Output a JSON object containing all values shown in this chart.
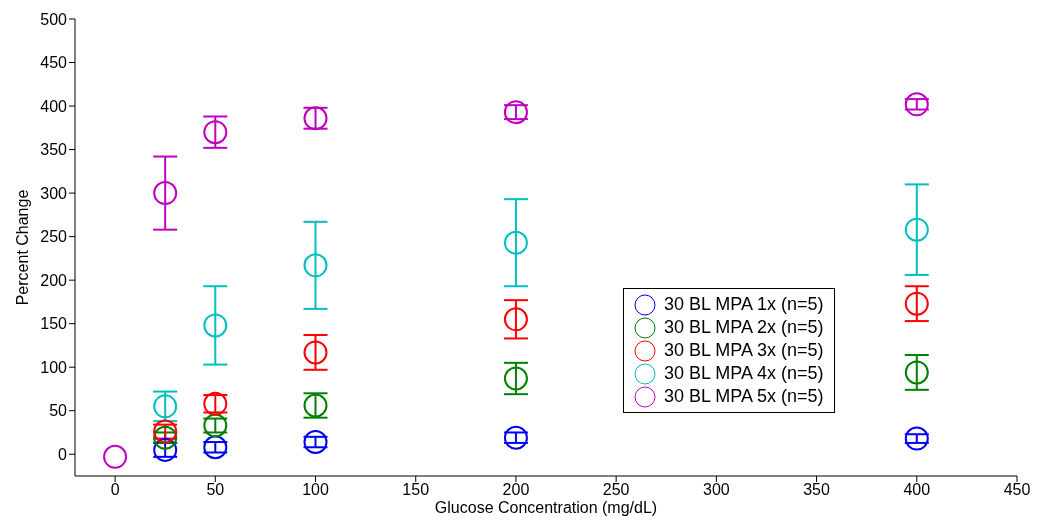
{
  "chart_data": {
    "type": "scatter",
    "xlabel": "Glucose Concentration (mg/dL)",
    "ylabel": "Percent Change",
    "x": [
      0,
      25,
      50,
      100,
      200,
      400
    ],
    "xlim": [
      -20,
      450
    ],
    "xticks": [
      0,
      50,
      100,
      150,
      200,
      250,
      300,
      350,
      400,
      450
    ],
    "ylim": [
      -25,
      500
    ],
    "yticks": [
      0,
      50,
      100,
      150,
      200,
      250,
      300,
      350,
      400,
      450,
      500
    ],
    "grid": false,
    "legend": "right",
    "marker": "circle",
    "series": [
      {
        "name": "30 BL MPA 1x (n=5)",
        "color": "#0000ff",
        "values": [
          null,
          5,
          8,
          14,
          19,
          18
        ],
        "errors": [
          null,
          8,
          6,
          6,
          6,
          5
        ]
      },
      {
        "name": "30 BL MPA 2x (n=5)",
        "color": "#008000",
        "values": [
          null,
          19,
          33,
          56,
          87,
          94
        ],
        "errors": [
          null,
          6,
          8,
          14,
          18,
          20
        ]
      },
      {
        "name": "30 BL MPA 3x (n=5)",
        "color": "#ff0000",
        "values": [
          null,
          26,
          58,
          117,
          155,
          173
        ],
        "errors": [
          null,
          8,
          10,
          20,
          22,
          20
        ]
      },
      {
        "name": "30 BL MPA 4x (n=5)",
        "color": "#00bfbf",
        "values": [
          null,
          55,
          148,
          217,
          243,
          258
        ],
        "errors": [
          null,
          17,
          45,
          50,
          50,
          52
        ]
      },
      {
        "name": "30 BL MPA 5x (n=5)",
        "color": "#bf00bf",
        "values": [
          -3,
          300,
          370,
          386,
          393,
          402
        ],
        "errors": [
          null,
          42,
          18,
          12,
          8,
          6
        ]
      }
    ]
  }
}
